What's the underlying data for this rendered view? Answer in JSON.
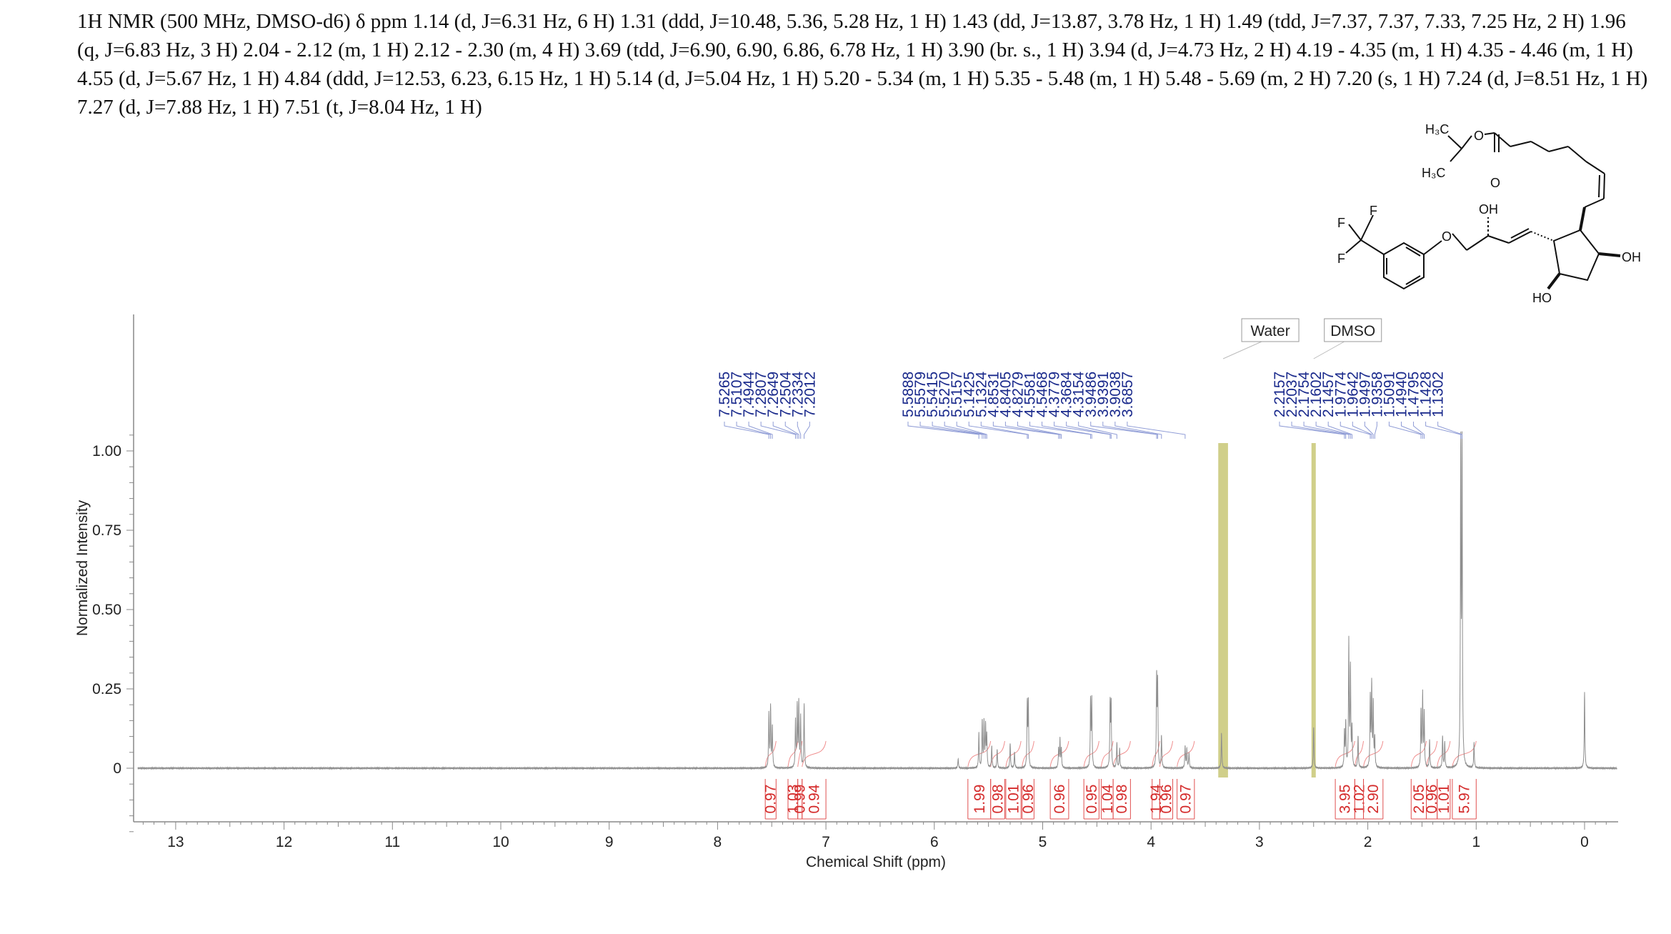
{
  "description": "1H NMR (500 MHz, DMSO-d6) δ ppm 1.14 (d, J=6.31 Hz, 6 H) 1.31 (ddd, J=10.48, 5.36, 5.28 Hz, 1 H) 1.43 (dd, J=13.87, 3.78 Hz, 1 H) 1.49 (tdd, J=7.37, 7.37, 7.33, 7.25 Hz, 2 H) 1.96 (q, J=6.83 Hz, 3 H) 2.04 - 2.12 (m, 1 H) 2.12 - 2.30 (m, 4 H) 3.69 (tdd, J=6.90, 6.90, 6.86, 6.78 Hz, 1 H) 3.90 (br. s., 1 H) 3.94 (d, J=4.73 Hz, 2 H) 4.19 - 4.35 (m, 1 H) 4.35 - 4.46 (m, 1 H) 4.55 (d, J=5.67 Hz, 1 H) 4.84 (ddd, J=12.53, 6.23, 6.15 Hz, 1 H) 5.14 (d, J=5.04 Hz, 1 H) 5.20 - 5.34 (m, 1 H) 5.35 - 5.48 (m, 1 H) 5.48 - 5.69 (m, 2 H) 7.20 (s, 1 H) 7.24 (d, J=8.51 Hz, 1 H) 7.27 (d, J=7.88 Hz, 1 H) 7.51 (t, J=8.04 Hz, 1 H)",
  "molecule": {
    "labels": {
      "f1": "F",
      "f2": "F",
      "f3": "F",
      "o_ether": "O",
      "oh_top": "OH",
      "oh_right": "OH",
      "ho_bottom": "HO",
      "o_ester": "O",
      "o_carbonyl": "O",
      "h3c_top": "H₃C",
      "h3c_mid": "H₃C"
    }
  },
  "chart_data": {
    "type": "line",
    "xlabel": "Chemical Shift (ppm)",
    "ylabel": "Normalized Intensity",
    "xlim": [
      13.35,
      -0.3
    ],
    "ylim": [
      -0.2,
      1.15
    ],
    "x_ticks": [
      13,
      12,
      11,
      10,
      9,
      8,
      7,
      6,
      5,
      4,
      3,
      2,
      1,
      0
    ],
    "y_ticks": [
      {
        "value": 1.0,
        "label": "1.00"
      },
      {
        "value": 0.75,
        "label": "0.75"
      },
      {
        "value": 0.5,
        "label": "0.50"
      },
      {
        "value": 0.25,
        "label": "0.25"
      },
      {
        "value": 0.0,
        "label": "0"
      }
    ],
    "grid": false,
    "peaks": [
      {
        "ppm": 7.5265,
        "h": 0.17
      },
      {
        "ppm": 7.5107,
        "h": 0.19
      },
      {
        "ppm": 7.4944,
        "h": 0.13
      },
      {
        "ppm": 7.2807,
        "h": 0.15
      },
      {
        "ppm": 7.2649,
        "h": 0.19
      },
      {
        "ppm": 7.2504,
        "h": 0.2
      },
      {
        "ppm": 7.2334,
        "h": 0.16
      },
      {
        "ppm": 7.2012,
        "h": 0.2
      },
      {
        "ppm": 5.78,
        "h": 0.03
      },
      {
        "ppm": 5.5888,
        "h": 0.11
      },
      {
        "ppm": 5.5579,
        "h": 0.15
      },
      {
        "ppm": 5.5415,
        "h": 0.14
      },
      {
        "ppm": 5.527,
        "h": 0.13
      },
      {
        "ppm": 5.5157,
        "h": 0.1
      },
      {
        "ppm": 5.47,
        "h": 0.07
      },
      {
        "ppm": 5.42,
        "h": 0.06
      },
      {
        "ppm": 5.3,
        "h": 0.08
      },
      {
        "ppm": 5.26,
        "h": 0.05
      },
      {
        "ppm": 5.1425,
        "h": 0.2
      },
      {
        "ppm": 5.1324,
        "h": 0.2
      },
      {
        "ppm": 4.8531,
        "h": 0.06
      },
      {
        "ppm": 4.8405,
        "h": 0.09
      },
      {
        "ppm": 4.8279,
        "h": 0.06
      },
      {
        "ppm": 4.5581,
        "h": 0.21
      },
      {
        "ppm": 4.5468,
        "h": 0.21
      },
      {
        "ppm": 4.3779,
        "h": 0.2
      },
      {
        "ppm": 4.3684,
        "h": 0.2
      },
      {
        "ppm": 4.3154,
        "h": 0.08
      },
      {
        "ppm": 4.29,
        "h": 0.06
      },
      {
        "ppm": 3.9486,
        "h": 0.28
      },
      {
        "ppm": 3.9391,
        "h": 0.26
      },
      {
        "ppm": 3.9038,
        "h": 0.1
      },
      {
        "ppm": 3.6857,
        "h": 0.07
      },
      {
        "ppm": 3.67,
        "h": 0.06
      },
      {
        "ppm": 3.65,
        "h": 0.05
      },
      {
        "ppm": 3.35,
        "h": 0.11
      },
      {
        "ppm": 2.5,
        "h": 0.13
      },
      {
        "ppm": 2.2157,
        "h": 0.11
      },
      {
        "ppm": 2.2037,
        "h": 0.14
      },
      {
        "ppm": 2.1754,
        "h": 0.4
      },
      {
        "ppm": 2.1602,
        "h": 0.31
      },
      {
        "ppm": 2.1457,
        "h": 0.12
      },
      {
        "ppm": 2.09,
        "h": 0.1
      },
      {
        "ppm": 1.9774,
        "h": 0.22
      },
      {
        "ppm": 1.9642,
        "h": 0.26
      },
      {
        "ppm": 1.9497,
        "h": 0.2
      },
      {
        "ppm": 1.9358,
        "h": 0.09
      },
      {
        "ppm": 1.5091,
        "h": 0.18
      },
      {
        "ppm": 1.494,
        "h": 0.23
      },
      {
        "ppm": 1.4795,
        "h": 0.17
      },
      {
        "ppm": 1.43,
        "h": 0.09
      },
      {
        "ppm": 1.31,
        "h": 0.1
      },
      {
        "ppm": 1.29,
        "h": 0.08
      },
      {
        "ppm": 1.1428,
        "h": 1.0
      },
      {
        "ppm": 1.1302,
        "h": 0.99
      },
      {
        "ppm": 1.02,
        "h": 0.08
      },
      {
        "ppm": 0.0,
        "h": 0.24
      }
    ],
    "peak_labels": [
      {
        "label": "7.5265",
        "ppm": 7.5265
      },
      {
        "label": "7.5107",
        "ppm": 7.5107
      },
      {
        "label": "7.4944",
        "ppm": 7.4944
      },
      {
        "label": "7.2807",
        "ppm": 7.2807
      },
      {
        "label": "7.2649",
        "ppm": 7.2649
      },
      {
        "label": "7.2504",
        "ppm": 7.2504
      },
      {
        "label": "7.2334",
        "ppm": 7.2334
      },
      {
        "label": "7.2012",
        "ppm": 7.2012
      },
      {
        "label": "5.5888",
        "ppm": 5.5888
      },
      {
        "label": "5.5579",
        "ppm": 5.5579
      },
      {
        "label": "5.5415",
        "ppm": 5.5415
      },
      {
        "label": "5.5270",
        "ppm": 5.527
      },
      {
        "label": "5.5157",
        "ppm": 5.5157
      },
      {
        "label": "5.1425",
        "ppm": 5.1425
      },
      {
        "label": "5.1324",
        "ppm": 5.1324
      },
      {
        "label": "4.8531",
        "ppm": 4.8531
      },
      {
        "label": "4.8405",
        "ppm": 4.8405
      },
      {
        "label": "4.8279",
        "ppm": 4.8279
      },
      {
        "label": "4.5581",
        "ppm": 4.5581
      },
      {
        "label": "4.5468",
        "ppm": 4.5468
      },
      {
        "label": "4.3779",
        "ppm": 4.3779
      },
      {
        "label": "4.3684",
        "ppm": 4.3684
      },
      {
        "label": "4.3154",
        "ppm": 4.3154
      },
      {
        "label": "3.9486",
        "ppm": 3.9486
      },
      {
        "label": "3.9391",
        "ppm": 3.9391
      },
      {
        "label": "3.9038",
        "ppm": 3.9038
      },
      {
        "label": "3.6857",
        "ppm": 3.6857
      },
      {
        "label": "2.2157",
        "ppm": 2.2157
      },
      {
        "label": "2.2037",
        "ppm": 2.2037
      },
      {
        "label": "2.1754",
        "ppm": 2.1754
      },
      {
        "label": "2.1602",
        "ppm": 2.1602
      },
      {
        "label": "2.1457",
        "ppm": 2.1457
      },
      {
        "label": "1.9774",
        "ppm": 1.9774
      },
      {
        "label": "1.9642",
        "ppm": 1.9642
      },
      {
        "label": "1.9497",
        "ppm": 1.9497
      },
      {
        "label": "1.9358",
        "ppm": 1.9358
      },
      {
        "label": "1.5091",
        "ppm": 1.5091
      },
      {
        "label": "1.4940",
        "ppm": 1.494
      },
      {
        "label": "1.4795",
        "ppm": 1.4795
      },
      {
        "label": "1.1428",
        "ppm": 1.1428
      },
      {
        "label": "1.1302",
        "ppm": 1.1302
      }
    ],
    "integrals": [
      {
        "value": "0.97",
        "from": 7.56,
        "to": 7.46
      },
      {
        "value": "1.03",
        "from": 7.35,
        "to": 7.26
      },
      {
        "value": "0.99",
        "from": 7.26,
        "to": 7.22
      },
      {
        "value": "0.94",
        "from": 7.22,
        "to": 7.0
      },
      {
        "value": "1.99",
        "from": 5.69,
        "to": 5.48
      },
      {
        "value": "0.98",
        "from": 5.48,
        "to": 5.35
      },
      {
        "value": "1.01",
        "from": 5.34,
        "to": 5.2
      },
      {
        "value": "0.96",
        "from": 5.19,
        "to": 5.08
      },
      {
        "value": "0.96",
        "from": 4.93,
        "to": 4.76
      },
      {
        "value": "0.95",
        "from": 4.62,
        "to": 4.48
      },
      {
        "value": "1.04",
        "from": 4.46,
        "to": 4.35
      },
      {
        "value": "0.98",
        "from": 4.35,
        "to": 4.19
      },
      {
        "value": "1.94",
        "from": 3.99,
        "to": 3.92
      },
      {
        "value": "0.96",
        "from": 3.92,
        "to": 3.8
      },
      {
        "value": "0.97",
        "from": 3.76,
        "to": 3.6
      },
      {
        "value": "3.95",
        "from": 2.3,
        "to": 2.12
      },
      {
        "value": "1.02",
        "from": 2.12,
        "to": 2.04
      },
      {
        "value": "2.90",
        "from": 2.04,
        "to": 1.86
      },
      {
        "value": "2.05",
        "from": 1.6,
        "to": 1.46
      },
      {
        "value": "0.96",
        "from": 1.46,
        "to": 1.36
      },
      {
        "value": "1.01",
        "from": 1.36,
        "to": 1.24
      },
      {
        "value": "5.97",
        "from": 1.22,
        "to": 1.0
      }
    ],
    "solvent_regions": [
      {
        "label": "Water",
        "from": 3.38,
        "to": 3.29
      },
      {
        "label": "DMSO",
        "from": 2.52,
        "to": 2.48
      }
    ]
  }
}
